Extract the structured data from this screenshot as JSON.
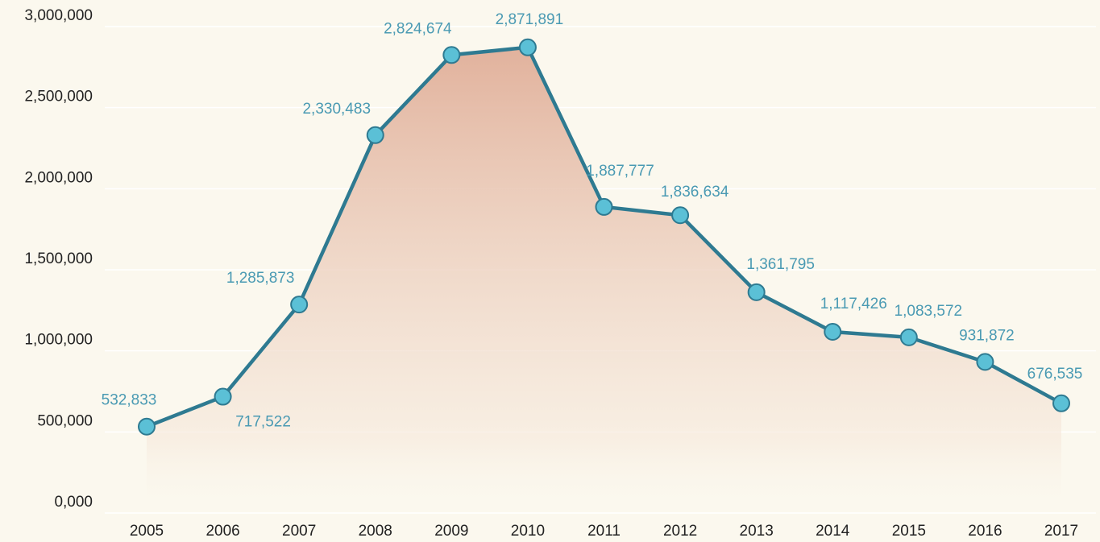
{
  "chart_data": {
    "type": "line",
    "categories": [
      "2005",
      "2006",
      "2007",
      "2008",
      "2009",
      "2010",
      "2011",
      "2012",
      "2013",
      "2014",
      "2015",
      "2016",
      "2017"
    ],
    "series": [
      {
        "color": "#2e7a91",
        "values": [
          532833,
          717522,
          1285873,
          2330483,
          2824674,
          2871891,
          1887777,
          1836634,
          1361795,
          1117426,
          1083572,
          931872,
          676535
        ],
        "value_labels": [
          "532,833",
          "717,522",
          "1,285,873",
          "2,330,483",
          "2,824,674",
          "2,871,891",
          "1,887,777",
          "1,836,634",
          "1,361,795",
          "1,117,426",
          "1,083,572",
          "931,872",
          "676,535"
        ]
      }
    ],
    "ylim": [
      0,
      3000000
    ],
    "yticks": [
      {
        "value": 0,
        "label": "0,000"
      },
      {
        "value": 500000,
        "label": "500,000"
      },
      {
        "value": 1000000,
        "label": "1,000,000"
      },
      {
        "value": 1500000,
        "label": "1,500,000"
      },
      {
        "value": 2000000,
        "label": "2,000,000"
      },
      {
        "value": 2500000,
        "label": "2,500,000"
      },
      {
        "value": 3000000,
        "label": "3,000,000"
      }
    ],
    "grid": true,
    "area": true
  }
}
